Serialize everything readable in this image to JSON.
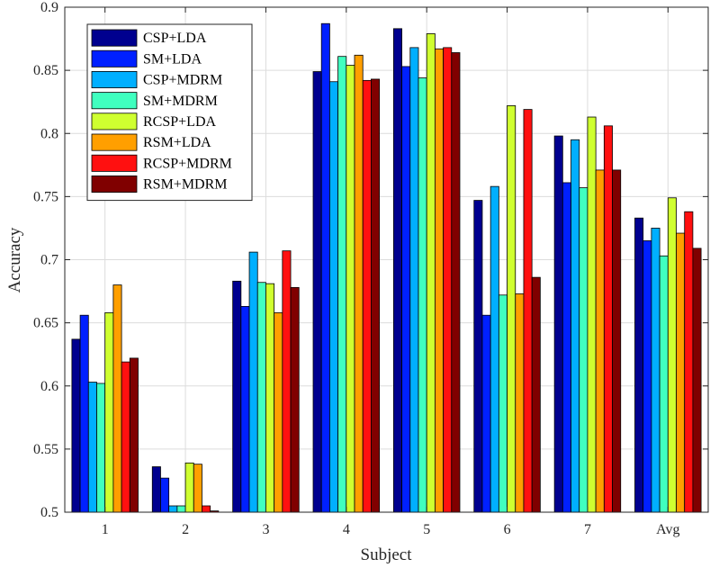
{
  "chart_data": {
    "type": "bar",
    "xlabel": "Subject",
    "ylabel": "Accuracy",
    "ylim": [
      0.5,
      0.9
    ],
    "yticks": [
      0.5,
      0.55,
      0.6,
      0.65,
      0.7,
      0.75,
      0.8,
      0.85,
      0.9
    ],
    "ytick_labels": [
      "0.5",
      "0.55",
      "0.6",
      "0.65",
      "0.7",
      "0.75",
      "0.8",
      "0.85",
      "0.9"
    ],
    "categories": [
      "1",
      "2",
      "3",
      "4",
      "5",
      "6",
      "7",
      "Avg"
    ],
    "grid": true,
    "legend_position": "top-left",
    "series": [
      {
        "name": "CSP+LDA",
        "color": "#00008f",
        "values": [
          0.637,
          0.536,
          0.683,
          0.849,
          0.883,
          0.747,
          0.798,
          0.733
        ]
      },
      {
        "name": "SM+LDA",
        "color": "#0020ff",
        "values": [
          0.656,
          0.527,
          0.663,
          0.887,
          0.853,
          0.656,
          0.761,
          0.715
        ]
      },
      {
        "name": "CSP+MDRM",
        "color": "#00afff",
        "values": [
          0.603,
          0.505,
          0.706,
          0.841,
          0.868,
          0.758,
          0.795,
          0.725
        ]
      },
      {
        "name": "SM+MDRM",
        "color": "#40ffbf",
        "values": [
          0.602,
          0.505,
          0.682,
          0.861,
          0.844,
          0.672,
          0.757,
          0.703
        ]
      },
      {
        "name": "RCSP+LDA",
        "color": "#cfff30",
        "values": [
          0.658,
          0.539,
          0.681,
          0.854,
          0.879,
          0.822,
          0.813,
          0.749
        ]
      },
      {
        "name": "RSM+LDA",
        "color": "#ff9f00",
        "values": [
          0.68,
          0.538,
          0.658,
          0.862,
          0.867,
          0.673,
          0.771,
          0.721
        ]
      },
      {
        "name": "RCSP+MDRM",
        "color": "#ff1010",
        "values": [
          0.619,
          0.505,
          0.707,
          0.842,
          0.868,
          0.819,
          0.806,
          0.738
        ]
      },
      {
        "name": "RSM+MDRM",
        "color": "#800000",
        "values": [
          0.622,
          0.501,
          0.678,
          0.843,
          0.864,
          0.686,
          0.771,
          0.709
        ]
      }
    ]
  }
}
